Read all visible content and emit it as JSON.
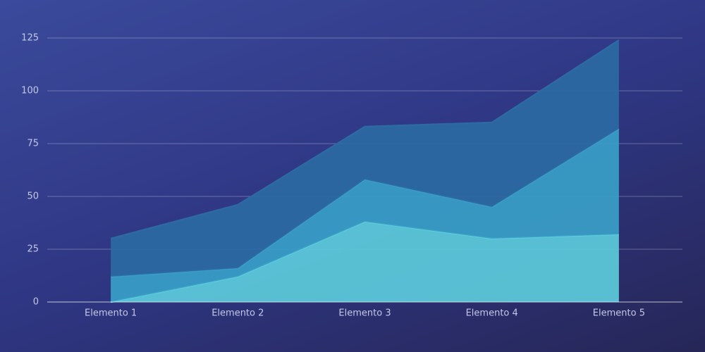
{
  "chart_data": {
    "type": "stacked_area",
    "categories": [
      "Elemento 1",
      "Elemento 2",
      "Elemento 3",
      "Elemento 4",
      "Elemento 5"
    ],
    "series": [
      {
        "color": "#5ccbdb",
        "values": [
          0,
          12,
          38,
          30,
          32
        ]
      },
      {
        "color": "#3a9fc8",
        "values": [
          12,
          4,
          20,
          15,
          50
        ]
      },
      {
        "color": "#2d6aa3",
        "values": [
          18,
          30,
          25,
          40,
          42
        ]
      }
    ],
    "ylim": [
      0,
      125
    ],
    "yticks": [
      0,
      25,
      50,
      75,
      100,
      125
    ],
    "grid": true
  }
}
